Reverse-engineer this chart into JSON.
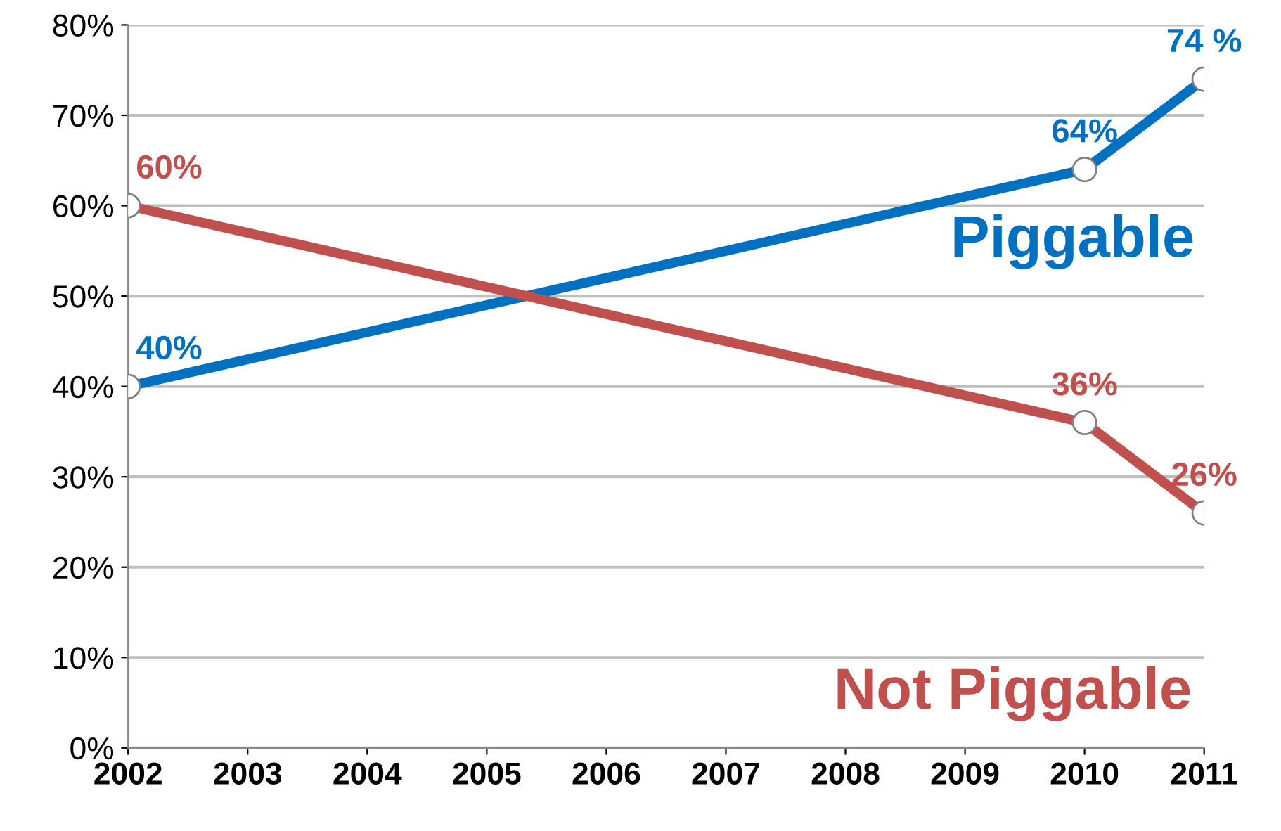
{
  "chart_data": {
    "type": "line",
    "xlim": [
      2002,
      2011
    ],
    "xticks": [
      2002,
      2003,
      2004,
      2005,
      2006,
      2007,
      2008,
      2009,
      2010,
      2011
    ],
    "ylim": [
      0,
      80
    ],
    "yticks": [
      {
        "value": 0,
        "label": "0%"
      },
      {
        "value": 10,
        "label": "10%"
      },
      {
        "value": 20,
        "label": "20%"
      },
      {
        "value": 30,
        "label": "30%"
      },
      {
        "value": 40,
        "label": "40%"
      },
      {
        "value": 50,
        "label": "50%"
      },
      {
        "value": 60,
        "label": "60%"
      },
      {
        "value": 70,
        "label": "70%"
      },
      {
        "value": 80,
        "label": "80%"
      }
    ],
    "grid": "y",
    "marker": "circle",
    "line_style": "solid",
    "series": [
      {
        "name": "Piggable",
        "color": "#0070c0",
        "x": [
          2002,
          2010,
          2011
        ],
        "values": [
          40,
          64,
          74
        ],
        "value_labels": [
          "40%",
          "64%",
          "74 %"
        ]
      },
      {
        "name": "Not Piggable",
        "color": "#c0504d",
        "x": [
          2002,
          2010,
          2011
        ],
        "values": [
          60,
          36,
          26
        ],
        "value_labels": [
          "60%",
          "36%",
          "26%"
        ]
      }
    ]
  }
}
